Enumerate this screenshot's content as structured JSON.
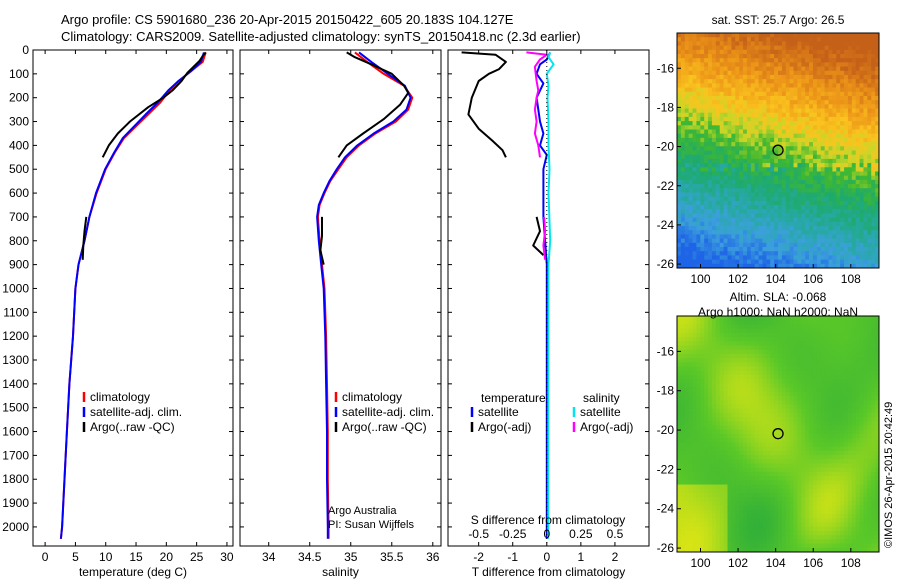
{
  "header": {
    "line1": "Argo profile: CS 5901680_236 20-Apr-2015 20150422_605 20.183S 104.127E",
    "line2": "Climatology: CARS2009. Satellite-adjusted climatology: synTS_20150418.nc (2.3d earlier)"
  },
  "credit": "©IMOS 26-Apr-2015 20:42:49",
  "colors": {
    "climatology": "#ff0000",
    "satellite": "#0000ff",
    "argo": "#000000",
    "sat_salinity": "#00e5ee",
    "argo_salinity_diff": "#ff00ff"
  },
  "chart_data": [
    {
      "id": "temperature",
      "type": "line",
      "xlabel": "temperature (deg C)",
      "ylabel": "",
      "xlim": [
        -2,
        31
      ],
      "ylim": [
        2080,
        0
      ],
      "xticks": [
        0,
        5,
        10,
        15,
        20,
        25,
        30
      ],
      "yticks": [
        0,
        100,
        200,
        300,
        400,
        500,
        600,
        700,
        800,
        900,
        1000,
        1100,
        1200,
        1300,
        1400,
        1500,
        1600,
        1700,
        1800,
        1900,
        2000
      ],
      "legend": [
        "climatology",
        "satellite-adj. clim.",
        "Argo(..raw -QC)"
      ],
      "series": [
        {
          "name": "climatology",
          "color": "#ff0000",
          "points": [
            [
              26.5,
              10
            ],
            [
              26,
              50
            ],
            [
              24,
              90
            ],
            [
              22,
              130
            ],
            [
              20.5,
              170
            ],
            [
              19,
              220
            ],
            [
              17,
              270
            ],
            [
              15,
              320
            ],
            [
              13,
              370
            ],
            [
              11.5,
              430
            ],
            [
              10,
              500
            ],
            [
              8.5,
              600
            ],
            [
              7.3,
              700
            ],
            [
              6.5,
              800
            ],
            [
              5.5,
              900
            ],
            [
              5,
              1000
            ],
            [
              4.6,
              1200
            ],
            [
              4,
              1400
            ],
            [
              3.6,
              1600
            ],
            [
              3.2,
              1800
            ],
            [
              2.8,
              2000
            ],
            [
              2.6,
              2050
            ]
          ]
        },
        {
          "name": "satellite-adj. clim.",
          "color": "#0000ff",
          "points": [
            [
              26.2,
              10
            ],
            [
              25.7,
              50
            ],
            [
              24,
              90
            ],
            [
              22,
              130
            ],
            [
              20.3,
              170
            ],
            [
              18.6,
              220
            ],
            [
              16.6,
              270
            ],
            [
              14.7,
              320
            ],
            [
              12.8,
              370
            ],
            [
              11.4,
              430
            ],
            [
              9.9,
              500
            ],
            [
              8.4,
              600
            ],
            [
              7.3,
              700
            ],
            [
              6.5,
              800
            ],
            [
              5.5,
              900
            ],
            [
              5,
              1000
            ],
            [
              4.6,
              1200
            ],
            [
              4,
              1400
            ],
            [
              3.6,
              1600
            ],
            [
              3.2,
              1800
            ],
            [
              2.8,
              2000
            ],
            [
              2.6,
              2050
            ]
          ]
        },
        {
          "name": "Argo(..raw -QC)",
          "color": "#000000",
          "points": [
            [
              26.5,
              10
            ],
            [
              26,
              25
            ],
            [
              25.5,
              45
            ],
            [
              24.5,
              70
            ],
            [
              23.5,
              95
            ],
            [
              22.5,
              130
            ],
            [
              21,
              170
            ],
            [
              19.5,
              200
            ],
            [
              17,
              240
            ],
            [
              14,
              300
            ],
            [
              12,
              350
            ],
            [
              10.5,
              400
            ],
            [
              9.5,
              450
            ]
          ]
        },
        {
          "name": "Argo(..raw -QC) deep",
          "color": "#000000",
          "points": [
            [
              6.8,
              700
            ],
            [
              6.5,
              760
            ],
            [
              6.3,
              820
            ],
            [
              6.2,
              880
            ]
          ]
        }
      ]
    },
    {
      "id": "salinity",
      "type": "line",
      "xlabel": "salinity",
      "ylabel": "",
      "xlim": [
        33.65,
        36.1
      ],
      "ylim": [
        2080,
        0
      ],
      "xticks": [
        34,
        34.5,
        35,
        35.5,
        36
      ],
      "legend": [
        "climatology",
        "satellite-adj. clim.",
        "Argo(..raw -QC)"
      ],
      "annotations": [
        "Argo Australia",
        "PI: Susan Wijffels"
      ],
      "series": [
        {
          "name": "climatology",
          "color": "#ff0000",
          "points": [
            [
              35.05,
              10
            ],
            [
              35.2,
              50
            ],
            [
              35.4,
              100
            ],
            [
              35.65,
              150
            ],
            [
              35.75,
              200
            ],
            [
              35.7,
              250
            ],
            [
              35.55,
              300
            ],
            [
              35.3,
              350
            ],
            [
              35.1,
              400
            ],
            [
              34.95,
              450
            ],
            [
              34.85,
              500
            ],
            [
              34.75,
              550
            ],
            [
              34.68,
              600
            ],
            [
              34.62,
              650
            ],
            [
              34.6,
              700
            ],
            [
              34.62,
              800
            ],
            [
              34.65,
              900
            ],
            [
              34.68,
              1000
            ],
            [
              34.7,
              1200
            ],
            [
              34.71,
              1400
            ],
            [
              34.72,
              1600
            ],
            [
              34.72,
              1800
            ],
            [
              34.73,
              2000
            ],
            [
              34.73,
              2050
            ]
          ]
        },
        {
          "name": "satellite-adj. clim.",
          "color": "#0000ff",
          "points": [
            [
              35.1,
              10
            ],
            [
              35.25,
              50
            ],
            [
              35.45,
              100
            ],
            [
              35.66,
              150
            ],
            [
              35.73,
              200
            ],
            [
              35.68,
              250
            ],
            [
              35.52,
              300
            ],
            [
              35.28,
              350
            ],
            [
              35.08,
              400
            ],
            [
              34.93,
              450
            ],
            [
              34.83,
              500
            ],
            [
              34.74,
              550
            ],
            [
              34.67,
              600
            ],
            [
              34.61,
              650
            ],
            [
              34.59,
              700
            ],
            [
              34.61,
              800
            ],
            [
              34.64,
              900
            ],
            [
              34.67,
              1000
            ],
            [
              34.69,
              1200
            ],
            [
              34.7,
              1400
            ],
            [
              34.71,
              1600
            ],
            [
              34.71,
              1800
            ],
            [
              34.72,
              2000
            ],
            [
              34.72,
              2050
            ]
          ]
        },
        {
          "name": "Argo(..raw -QC)",
          "color": "#000000",
          "points": [
            [
              34.95,
              10
            ],
            [
              35.05,
              30
            ],
            [
              35.25,
              60
            ],
            [
              35.5,
              100
            ],
            [
              35.65,
              150
            ],
            [
              35.7,
              180
            ],
            [
              35.6,
              230
            ],
            [
              35.4,
              290
            ],
            [
              35.15,
              350
            ],
            [
              34.95,
              400
            ],
            [
              34.85,
              450
            ]
          ]
        },
        {
          "name": "Argo(..raw -QC) deep",
          "color": "#000000",
          "points": [
            [
              34.65,
              700
            ],
            [
              34.65,
              780
            ],
            [
              34.63,
              840
            ],
            [
              34.67,
              900
            ]
          ]
        }
      ]
    },
    {
      "id": "differences",
      "type": "line",
      "xlabel": "T difference from climatology",
      "xlabel_top": "S difference from climatology",
      "ylabel": "",
      "xlim": [
        -2.9,
        3.0
      ],
      "ylim": [
        2080,
        0
      ],
      "xticks": [
        -2,
        -1,
        0,
        1,
        2
      ],
      "xticks_s": [
        -0.5,
        -0.25,
        0,
        0.25,
        0.5
      ],
      "xticks_s_labels": [
        "-0.5",
        "-0.25",
        "0",
        "0.25",
        "0.5"
      ],
      "legend_t_title": "temperature",
      "legend_s_title": "salinity",
      "legend": [
        "satellite",
        "Argo(-adj)",
        "satellite",
        "Argo(-adj)"
      ],
      "series": [
        {
          "name": "T satellite",
          "color": "#0000ff",
          "points": [
            [
              0.1,
              10
            ],
            [
              0,
              40
            ],
            [
              -0.2,
              60
            ],
            [
              -0.3,
              100
            ],
            [
              -0.1,
              140
            ],
            [
              -0.3,
              200
            ],
            [
              -0.2,
              300
            ],
            [
              -0.1,
              350
            ],
            [
              -0.2,
              400
            ],
            [
              0,
              440
            ],
            [
              -0.1,
              500
            ],
            [
              -0.1,
              700
            ],
            [
              -0.05,
              800
            ],
            [
              0,
              900
            ],
            [
              0,
              2050
            ]
          ]
        },
        {
          "name": "T Argo(-adj)",
          "color": "#000000",
          "points": [
            [
              -2.5,
              10
            ],
            [
              -1.5,
              20
            ],
            [
              -1.2,
              50
            ],
            [
              -1.4,
              80
            ],
            [
              -1.7,
              100
            ],
            [
              -2,
              130
            ],
            [
              -2.2,
              200
            ],
            [
              -2.3,
              270
            ],
            [
              -2,
              330
            ],
            [
              -1.6,
              380
            ],
            [
              -1.3,
              420
            ],
            [
              -1.2,
              450
            ]
          ]
        },
        {
          "name": "T Argo(-adj) deep",
          "color": "#000000",
          "points": [
            [
              -0.3,
              700
            ],
            [
              -0.2,
              760
            ],
            [
              -0.4,
              820
            ],
            [
              -0.1,
              860
            ]
          ]
        },
        {
          "name": "S satellite",
          "color": "#00e5ee",
          "points": [
            [
              0.1,
              10
            ],
            [
              0.05,
              30
            ],
            [
              0.2,
              60
            ],
            [
              0,
              100
            ],
            [
              0.05,
              150
            ],
            [
              0.02,
              200
            ],
            [
              0.05,
              300
            ],
            [
              0.05,
              400
            ],
            [
              0.08,
              500
            ],
            [
              0.05,
              600
            ],
            [
              0.1,
              800
            ],
            [
              0.05,
              900
            ],
            [
              0.04,
              2050
            ]
          ]
        },
        {
          "name": "S Argo(-adj)",
          "color": "#ff00ff",
          "points": [
            [
              -0.6,
              10
            ],
            [
              0,
              20
            ],
            [
              -0.2,
              40
            ],
            [
              -0.35,
              70
            ],
            [
              -0.3,
              130
            ],
            [
              -0.25,
              170
            ],
            [
              -0.3,
              200
            ],
            [
              -0.35,
              250
            ],
            [
              -0.3,
              300
            ],
            [
              -0.35,
              350
            ],
            [
              -0.25,
              400
            ],
            [
              -0.2,
              450
            ]
          ]
        },
        {
          "name": "S Argo(-adj) deep",
          "color": "#ff00ff",
          "points": [
            [
              -0.08,
              700
            ],
            [
              -0.05,
              760
            ],
            [
              -0.1,
              820
            ],
            [
              -0.05,
              880
            ]
          ]
        }
      ]
    },
    {
      "id": "sst_map",
      "type": "heatmap",
      "title": "sat. SST: 25.7 Argo: 26.5",
      "xticks": [
        100,
        102,
        104,
        106,
        108
      ],
      "yticks": [
        -16,
        -18,
        -20,
        -22,
        -24,
        -26
      ],
      "xlim": [
        98.75,
        109.5
      ],
      "ylim": [
        -26.2,
        -14.2
      ],
      "marker": [
        104.127,
        -20.183
      ]
    },
    {
      "id": "sla_map",
      "type": "heatmap",
      "title_line1": "Altim. SLA: -0.068",
      "title_line2": "Argo h1000: NaN h2000: NaN",
      "xticks": [
        100,
        102,
        104,
        106,
        108
      ],
      "yticks": [
        -16,
        -18,
        -20,
        -22,
        -24,
        -26
      ],
      "xlim": [
        98.75,
        109.5
      ],
      "ylim": [
        -26.2,
        -14.2
      ],
      "marker": [
        104.127,
        -20.183
      ]
    }
  ]
}
